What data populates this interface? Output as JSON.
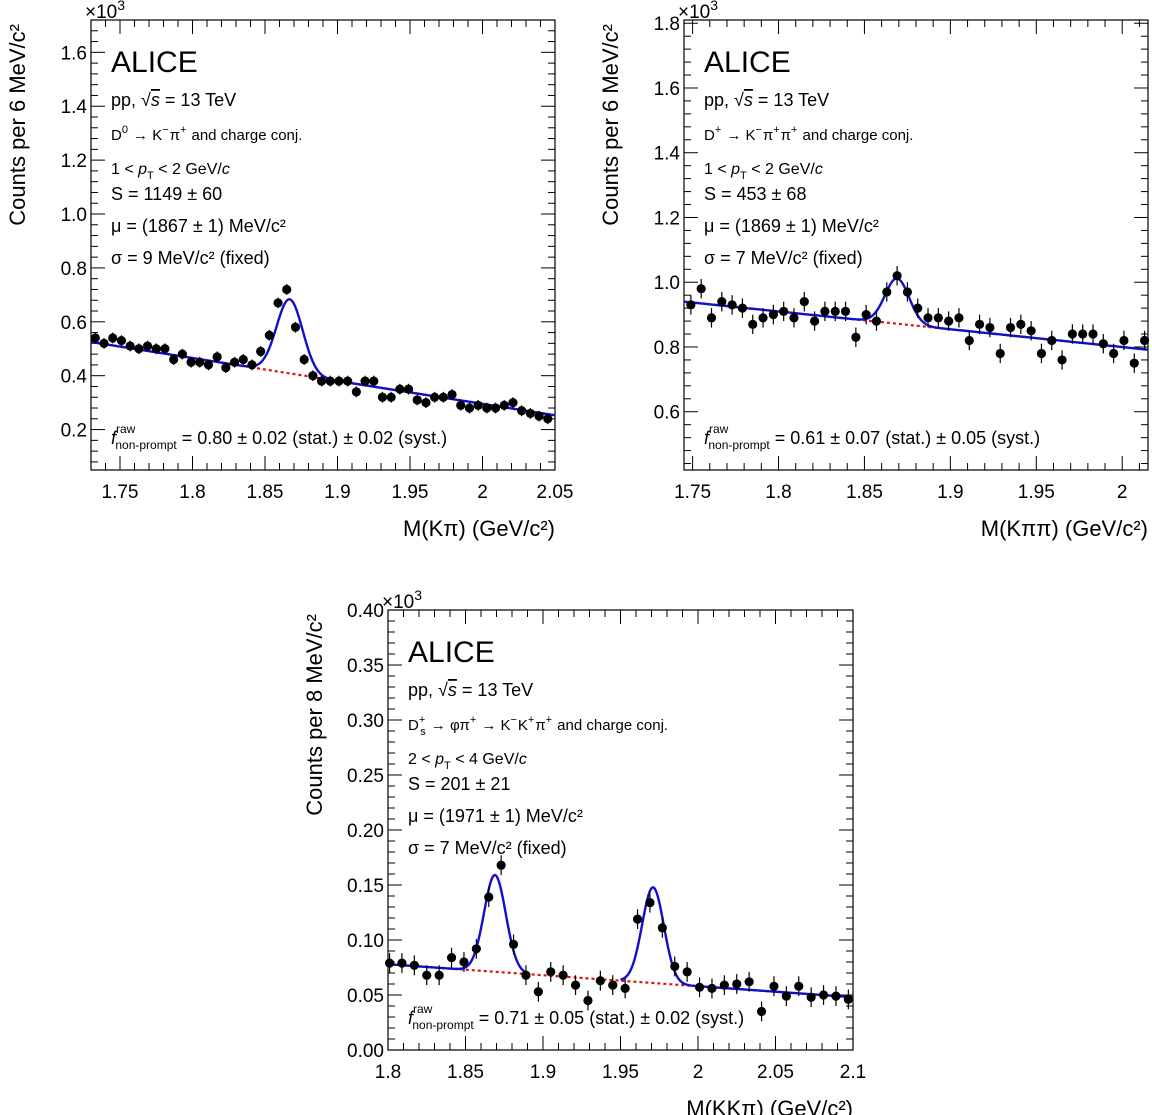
{
  "chart_data": [
    {
      "type": "scatter",
      "experiment": "ALICE",
      "system": "pp",
      "energy": "= 13 TeV",
      "decay_head": "D",
      "decay_sup": "0",
      "decay_tail": " → K",
      "decay_pieces": [
        {
          "t": "D",
          "s": "0"
        },
        {
          "t": " → K",
          "s": "−"
        },
        {
          "t": "π",
          "s": "+"
        },
        {
          "t": " and charge conj.",
          "s": ""
        }
      ],
      "pt_range": [
        "1 <",
        "p",
        "T",
        "< 2 GeV/",
        "c"
      ],
      "signal": "S = 1149 ± 60",
      "mean": "μ = (1867 ± 1) MeV/c²",
      "sigma": "σ = 9 MeV/c² (fixed)",
      "fraction": "f",
      "fraction_sup": "raw",
      "fraction_sub": "non-prompt",
      "fraction_value": "= 0.80 ± 0.02 (stat.) ± 0.02 (syst.)",
      "exponent": "×10",
      "exponent_power": "3",
      "ylabel": "Counts per 6 MeV/c²",
      "xlabel": "M(Kπ) (GeV/c²)",
      "xlim": [
        1.73,
        2.05
      ],
      "ylim": [
        0.05,
        1.72
      ],
      "xticks": [
        1.75,
        1.8,
        1.85,
        1.9,
        1.95,
        2.0,
        2.05
      ],
      "xtick_labels": [
        "1.75",
        "1.8",
        "1.85",
        "1.9",
        "1.95",
        "2",
        "2.05"
      ],
      "yticks": [
        0.2,
        0.4,
        0.6,
        0.8,
        1.0,
        1.2,
        1.4,
        1.6
      ],
      "ytick_labels": [
        "0.2",
        "0.4",
        "0.6",
        "0.8",
        "1.0",
        "1.2",
        "1.4",
        "1.6"
      ],
      "x": [
        1.733,
        1.739,
        1.745,
        1.751,
        1.757,
        1.763,
        1.769,
        1.775,
        1.781,
        1.787,
        1.793,
        1.799,
        1.805,
        1.811,
        1.817,
        1.823,
        1.829,
        1.835,
        1.841,
        1.847,
        1.853,
        1.859,
        1.865,
        1.871,
        1.877,
        1.883,
        1.889,
        1.895,
        1.901,
        1.907,
        1.913,
        1.919,
        1.925,
        1.931,
        1.937,
        1.943,
        1.949,
        1.955,
        1.961,
        1.967,
        1.973,
        1.979,
        1.985,
        1.991,
        1.997,
        2.003,
        2.009,
        2.015,
        2.021,
        2.027,
        2.033,
        2.039,
        2.045
      ],
      "y": [
        0.54,
        0.52,
        0.54,
        0.53,
        0.51,
        0.5,
        0.51,
        0.5,
        0.5,
        0.46,
        0.48,
        0.45,
        0.45,
        0.44,
        0.47,
        0.43,
        0.45,
        0.46,
        0.44,
        0.49,
        0.55,
        0.67,
        0.72,
        0.58,
        0.46,
        0.4,
        0.38,
        0.38,
        0.38,
        0.38,
        0.34,
        0.38,
        0.38,
        0.32,
        0.32,
        0.35,
        0.35,
        0.31,
        0.3,
        0.32,
        0.32,
        0.33,
        0.29,
        0.28,
        0.29,
        0.28,
        0.28,
        0.29,
        0.3,
        0.27,
        0.26,
        0.25,
        0.24
      ],
      "yerr": 0.02,
      "fit": {
        "bkg_intercept": 0.525,
        "bkg_slope": -0.85,
        "bkg_x0": 1.73,
        "peak_amp": 0.275,
        "peak_mean": 1.867,
        "peak_sigma": 0.009
      },
      "fit_color": "#1010cc",
      "bkg_color": "#dd1111"
    },
    {
      "type": "scatter",
      "experiment": "ALICE",
      "system": "pp",
      "energy": "= 13 TeV",
      "decay_pieces": [
        {
          "t": "D",
          "s": "+"
        },
        {
          "t": " → K",
          "s": "−"
        },
        {
          "t": "π",
          "s": "+"
        },
        {
          "t": "π",
          "s": "+"
        },
        {
          "t": " and charge conj.",
          "s": ""
        }
      ],
      "pt_range": [
        "1 <",
        "p",
        "T",
        "< 2 GeV/",
        "c"
      ],
      "signal": "S = 453 ± 68",
      "mean": "μ = (1869 ± 1) MeV/c²",
      "sigma": "σ = 7 MeV/c² (fixed)",
      "fraction": "f",
      "fraction_sup": "raw",
      "fraction_sub": "non-prompt",
      "fraction_value": "= 0.61 ± 0.07 (stat.) ± 0.05 (syst.)",
      "exponent": "×10",
      "exponent_power": "3",
      "ylabel": "Counts per 6 MeV/c²",
      "xlabel": "M(Kππ) (GeV/c²)",
      "xlim": [
        1.745,
        2.015
      ],
      "ylim": [
        0.42,
        1.81
      ],
      "xticks": [
        1.75,
        1.8,
        1.85,
        1.9,
        1.95,
        2.0
      ],
      "xtick_labels": [
        "1.75",
        "1.8",
        "1.85",
        "1.9",
        "1.95",
        "2"
      ],
      "yticks": [
        0.6,
        0.8,
        1.0,
        1.2,
        1.4,
        1.6,
        1.8
      ],
      "ytick_labels": [
        "0.6",
        "0.8",
        "1.0",
        "1.2",
        "1.4",
        "1.6",
        "1.8"
      ],
      "x": [
        1.749,
        1.755,
        1.761,
        1.767,
        1.773,
        1.779,
        1.785,
        1.791,
        1.797,
        1.803,
        1.809,
        1.815,
        1.821,
        1.827,
        1.833,
        1.839,
        1.845,
        1.851,
        1.857,
        1.863,
        1.869,
        1.875,
        1.881,
        1.887,
        1.893,
        1.899,
        1.905,
        1.911,
        1.917,
        1.923,
        1.929,
        1.935,
        1.941,
        1.947,
        1.953,
        1.959,
        1.965,
        1.971,
        1.977,
        1.983,
        1.989,
        1.995,
        2.001,
        2.007,
        2.013
      ],
      "y": [
        0.93,
        0.98,
        0.89,
        0.94,
        0.93,
        0.92,
        0.87,
        0.89,
        0.9,
        0.91,
        0.89,
        0.94,
        0.88,
        0.91,
        0.91,
        0.91,
        0.83,
        0.9,
        0.88,
        0.97,
        1.02,
        0.97,
        0.92,
        0.89,
        0.89,
        0.88,
        0.89,
        0.82,
        0.87,
        0.86,
        0.78,
        0.86,
        0.87,
        0.85,
        0.78,
        0.82,
        0.76,
        0.84,
        0.84,
        0.84,
        0.81,
        0.78,
        0.82,
        0.75,
        0.82
      ],
      "yerr": 0.03,
      "fit": {
        "bkg_intercept": 0.94,
        "bkg_slope": -0.55,
        "bkg_x0": 1.745,
        "peak_amp": 0.14,
        "peak_mean": 1.869,
        "peak_sigma": 0.007
      },
      "fit_color": "#1010cc",
      "bkg_color": "#dd1111"
    },
    {
      "type": "scatter",
      "experiment": "ALICE",
      "system": "pp",
      "energy": "= 13 TeV",
      "decay_pieces": [
        {
          "t": "D",
          "s": "+",
          "b": "s"
        },
        {
          "t": " → φπ",
          "s": "+"
        },
        {
          "t": " → K",
          "s": "−"
        },
        {
          "t": "K",
          "s": "+"
        },
        {
          "t": "π",
          "s": "+"
        },
        {
          "t": " and charge conj.",
          "s": ""
        }
      ],
      "pt_range": [
        "2 <",
        "p",
        "T",
        "< 4 GeV/",
        "c"
      ],
      "signal": "S = 201 ± 21",
      "mean": "μ = (1971 ± 1) MeV/c²",
      "sigma": "σ = 7 MeV/c² (fixed)",
      "fraction": "f",
      "fraction_sup": "raw",
      "fraction_sub": "non-prompt",
      "fraction_value": "= 0.71 ± 0.05 (stat.) ± 0.02 (syst.)",
      "exponent": "×10",
      "exponent_power": "3",
      "ylabel": "Counts per 8 MeV/c²",
      "xlabel": "M(KKπ) (GeV/c²)",
      "xlim": [
        1.8,
        2.1
      ],
      "ylim": [
        0.0,
        0.4
      ],
      "xticks": [
        1.8,
        1.85,
        1.9,
        1.95,
        2.0,
        2.05,
        2.1
      ],
      "xtick_labels": [
        "1.8",
        "1.85",
        "1.9",
        "1.95",
        "2",
        "2.05",
        "2.1"
      ],
      "yticks": [
        0.0,
        0.05,
        0.1,
        0.15,
        0.2,
        0.25,
        0.3,
        0.35,
        0.4
      ],
      "ytick_labels": [
        "0.00",
        "0.05",
        "0.10",
        "0.15",
        "0.20",
        "0.25",
        "0.30",
        "0.35",
        "0.40"
      ],
      "x": [
        1.801,
        1.809,
        1.817,
        1.825,
        1.833,
        1.841,
        1.849,
        1.857,
        1.865,
        1.873,
        1.881,
        1.889,
        1.897,
        1.905,
        1.913,
        1.921,
        1.929,
        1.937,
        1.945,
        1.953,
        1.961,
        1.969,
        1.977,
        1.985,
        1.993,
        2.001,
        2.009,
        2.017,
        2.025,
        2.033,
        2.041,
        2.049,
        2.057,
        2.065,
        2.073,
        2.081,
        2.089,
        2.097
      ],
      "y": [
        0.079,
        0.079,
        0.077,
        0.068,
        0.068,
        0.084,
        0.08,
        0.092,
        0.139,
        0.168,
        0.096,
        0.068,
        0.053,
        0.071,
        0.068,
        0.059,
        0.045,
        0.063,
        0.059,
        0.056,
        0.119,
        0.134,
        0.111,
        0.076,
        0.071,
        0.057,
        0.056,
        0.059,
        0.06,
        0.062,
        0.035,
        0.058,
        0.049,
        0.058,
        0.048,
        0.05,
        0.049,
        0.046
      ],
      "yerr": 0.009,
      "fit": {
        "bkg_intercept": 0.078,
        "bkg_slope": -0.1,
        "bkg_x0": 1.8,
        "peak_amp": 0.088,
        "peak_mean": 1.869,
        "peak_sigma": 0.007,
        "peak2_amp": 0.087,
        "peak2_mean": 1.971,
        "peak2_sigma": 0.007
      },
      "fit_color": "#1010cc",
      "bkg_color": "#dd1111"
    }
  ]
}
